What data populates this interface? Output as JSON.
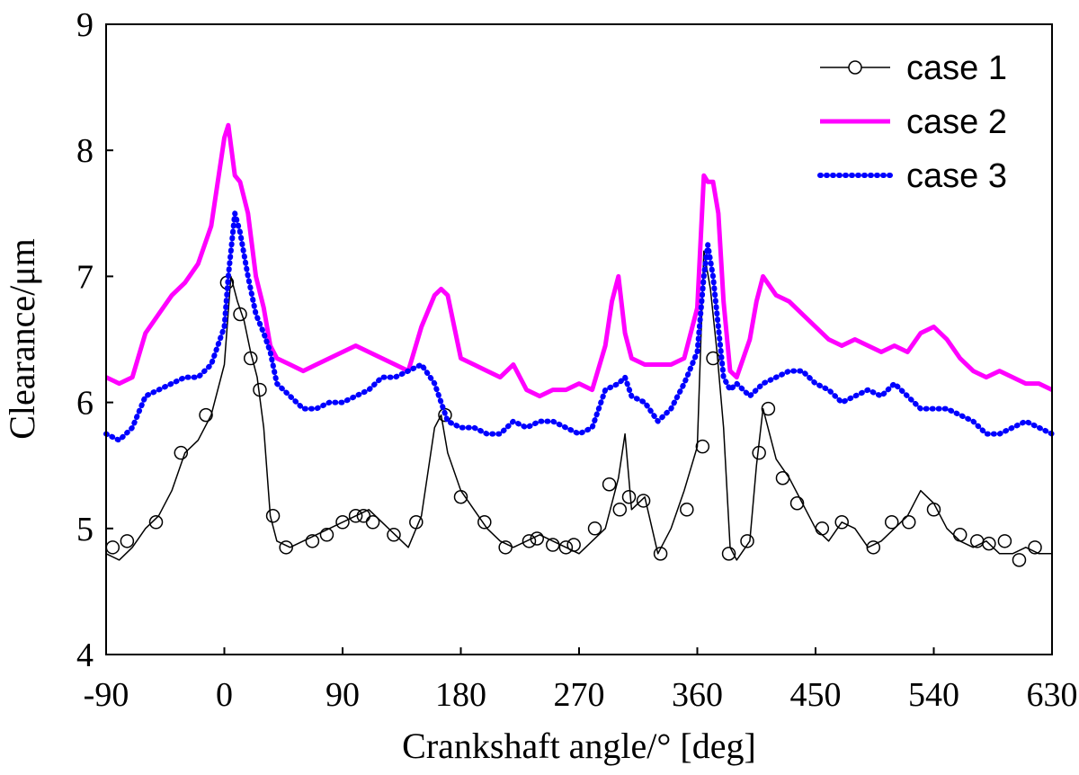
{
  "chart_data": {
    "type": "line",
    "title": "",
    "xlabel": "Crankshaft angle/°  [deg]",
    "ylabel": "Clearance/μm",
    "xlim": [
      -90,
      630
    ],
    "ylim": [
      4,
      9
    ],
    "xticks": [
      -90,
      0,
      90,
      180,
      270,
      360,
      450,
      540,
      630
    ],
    "yticks": [
      4,
      5,
      6,
      7,
      8,
      9
    ],
    "grid": false,
    "legend_position": "top-right",
    "series": [
      {
        "name": "case 1",
        "color": "#000000",
        "style": "solid-thin-circle-markers",
        "x": [
          -90,
          -80,
          -70,
          -60,
          -50,
          -40,
          -30,
          -20,
          -10,
          0,
          5,
          10,
          15,
          20,
          25,
          30,
          35,
          40,
          50,
          60,
          70,
          80,
          90,
          100,
          110,
          120,
          130,
          140,
          150,
          160,
          165,
          170,
          180,
          190,
          200,
          210,
          220,
          230,
          240,
          250,
          260,
          270,
          280,
          290,
          295,
          300,
          305,
          310,
          320,
          330,
          340,
          350,
          360,
          365,
          370,
          375,
          380,
          385,
          390,
          400,
          405,
          410,
          420,
          430,
          440,
          450,
          460,
          470,
          480,
          490,
          500,
          510,
          520,
          530,
          540,
          550,
          560,
          570,
          580,
          590,
          600,
          610,
          620,
          630
        ],
        "y": [
          4.8,
          4.75,
          4.85,
          5.0,
          5.1,
          5.3,
          5.6,
          5.7,
          5.9,
          6.3,
          7.0,
          6.8,
          6.65,
          6.4,
          6.2,
          5.8,
          5.1,
          4.9,
          4.85,
          4.9,
          4.95,
          5.0,
          5.05,
          5.1,
          5.15,
          5.05,
          4.95,
          4.85,
          5.1,
          5.8,
          5.9,
          5.6,
          5.3,
          5.15,
          5.0,
          4.9,
          4.85,
          4.9,
          4.95,
          4.9,
          4.85,
          4.8,
          4.9,
          5.0,
          5.2,
          5.4,
          5.75,
          5.15,
          5.25,
          4.8,
          5.0,
          5.3,
          5.65,
          7.2,
          6.9,
          6.4,
          5.8,
          4.85,
          4.75,
          4.9,
          5.5,
          5.95,
          5.55,
          5.4,
          5.2,
          5.0,
          4.9,
          5.05,
          5.0,
          4.85,
          4.9,
          5.0,
          5.1,
          5.3,
          5.2,
          5.0,
          4.9,
          4.85,
          4.9,
          4.8,
          4.8,
          4.85,
          4.8,
          4.8
        ],
        "markers_x": [
          -85,
          -74,
          -52,
          -33,
          -14,
          2,
          12,
          20,
          27,
          37,
          47,
          67,
          78,
          90,
          100,
          106,
          113,
          129,
          146,
          168,
          180,
          198,
          214,
          232,
          238,
          250,
          260,
          266,
          282,
          293,
          301,
          308,
          319,
          332,
          352,
          364,
          372,
          384,
          398,
          407,
          414,
          425,
          436,
          455,
          470,
          494,
          508,
          521,
          540,
          560,
          573,
          582,
          594,
          605,
          617
        ],
        "markers_y": [
          4.85,
          4.9,
          5.05,
          5.6,
          5.9,
          6.95,
          6.7,
          6.35,
          6.1,
          5.1,
          4.85,
          4.9,
          4.95,
          5.05,
          5.1,
          5.1,
          5.05,
          4.95,
          5.05,
          5.9,
          5.25,
          5.05,
          4.85,
          4.9,
          4.92,
          4.87,
          4.85,
          4.87,
          5.0,
          5.35,
          5.15,
          5.25,
          5.22,
          4.8,
          5.15,
          5.65,
          6.35,
          4.8,
          4.9,
          5.6,
          5.95,
          5.4,
          5.2,
          5.0,
          5.05,
          4.85,
          5.05,
          5.05,
          5.15,
          4.95,
          4.9,
          4.88,
          4.9,
          4.75,
          4.85
        ]
      },
      {
        "name": "case 2",
        "color": "#ff00ff",
        "style": "solid-thick",
        "x": [
          -90,
          -80,
          -70,
          -60,
          -50,
          -40,
          -30,
          -20,
          -10,
          0,
          3,
          8,
          12,
          18,
          24,
          30,
          35,
          40,
          50,
          60,
          70,
          80,
          90,
          100,
          110,
          120,
          130,
          140,
          150,
          160,
          165,
          170,
          175,
          180,
          190,
          200,
          210,
          220,
          230,
          240,
          250,
          260,
          270,
          280,
          290,
          295,
          300,
          305,
          310,
          320,
          330,
          340,
          350,
          360,
          365,
          368,
          372,
          376,
          380,
          385,
          390,
          400,
          405,
          410,
          420,
          430,
          440,
          450,
          460,
          470,
          480,
          490,
          500,
          510,
          520,
          530,
          540,
          550,
          560,
          570,
          580,
          590,
          600,
          610,
          620,
          630
        ],
        "y": [
          6.2,
          6.15,
          6.2,
          6.55,
          6.7,
          6.85,
          6.95,
          7.1,
          7.4,
          8.1,
          8.2,
          7.8,
          7.75,
          7.5,
          7.0,
          6.75,
          6.45,
          6.35,
          6.3,
          6.25,
          6.3,
          6.35,
          6.4,
          6.45,
          6.4,
          6.35,
          6.3,
          6.25,
          6.6,
          6.85,
          6.9,
          6.85,
          6.6,
          6.35,
          6.3,
          6.25,
          6.2,
          6.3,
          6.1,
          6.05,
          6.1,
          6.1,
          6.15,
          6.1,
          6.45,
          6.8,
          7.0,
          6.55,
          6.35,
          6.3,
          6.3,
          6.3,
          6.35,
          6.75,
          7.8,
          7.75,
          7.75,
          7.5,
          6.8,
          6.25,
          6.2,
          6.5,
          6.8,
          7.0,
          6.85,
          6.8,
          6.7,
          6.6,
          6.5,
          6.45,
          6.5,
          6.45,
          6.4,
          6.45,
          6.4,
          6.55,
          6.6,
          6.5,
          6.35,
          6.25,
          6.2,
          6.25,
          6.2,
          6.15,
          6.15,
          6.1
        ]
      },
      {
        "name": "case 3",
        "color": "#0000ff",
        "style": "dotted",
        "x": [
          -90,
          -80,
          -70,
          -60,
          -50,
          -40,
          -30,
          -20,
          -10,
          0,
          3,
          8,
          12,
          18,
          24,
          30,
          35,
          40,
          50,
          60,
          70,
          80,
          90,
          100,
          110,
          120,
          130,
          140,
          150,
          160,
          165,
          170,
          180,
          190,
          200,
          210,
          220,
          230,
          240,
          250,
          260,
          270,
          280,
          290,
          300,
          305,
          310,
          320,
          330,
          340,
          350,
          360,
          365,
          368,
          372,
          376,
          380,
          385,
          390,
          400,
          410,
          420,
          430,
          440,
          450,
          460,
          470,
          480,
          490,
          500,
          510,
          520,
          530,
          540,
          550,
          560,
          570,
          580,
          590,
          600,
          610,
          620,
          630
        ],
        "y": [
          5.75,
          5.7,
          5.8,
          6.05,
          6.1,
          6.15,
          6.2,
          6.2,
          6.3,
          6.6,
          7.0,
          7.5,
          7.35,
          7.0,
          6.7,
          6.55,
          6.4,
          6.15,
          6.05,
          5.95,
          5.95,
          6.0,
          6.0,
          6.05,
          6.1,
          6.2,
          6.2,
          6.25,
          6.3,
          6.15,
          6.0,
          5.85,
          5.8,
          5.8,
          5.75,
          5.75,
          5.85,
          5.8,
          5.85,
          5.85,
          5.8,
          5.75,
          5.8,
          6.1,
          6.15,
          6.2,
          6.05,
          6.0,
          5.85,
          5.95,
          6.15,
          6.4,
          7.0,
          7.25,
          7.0,
          6.6,
          6.2,
          6.1,
          6.15,
          6.05,
          6.15,
          6.2,
          6.25,
          6.25,
          6.15,
          6.1,
          6.0,
          6.05,
          6.1,
          6.05,
          6.15,
          6.05,
          5.95,
          5.95,
          5.95,
          5.9,
          5.85,
          5.75,
          5.75,
          5.8,
          5.85,
          5.8,
          5.75
        ]
      }
    ]
  }
}
